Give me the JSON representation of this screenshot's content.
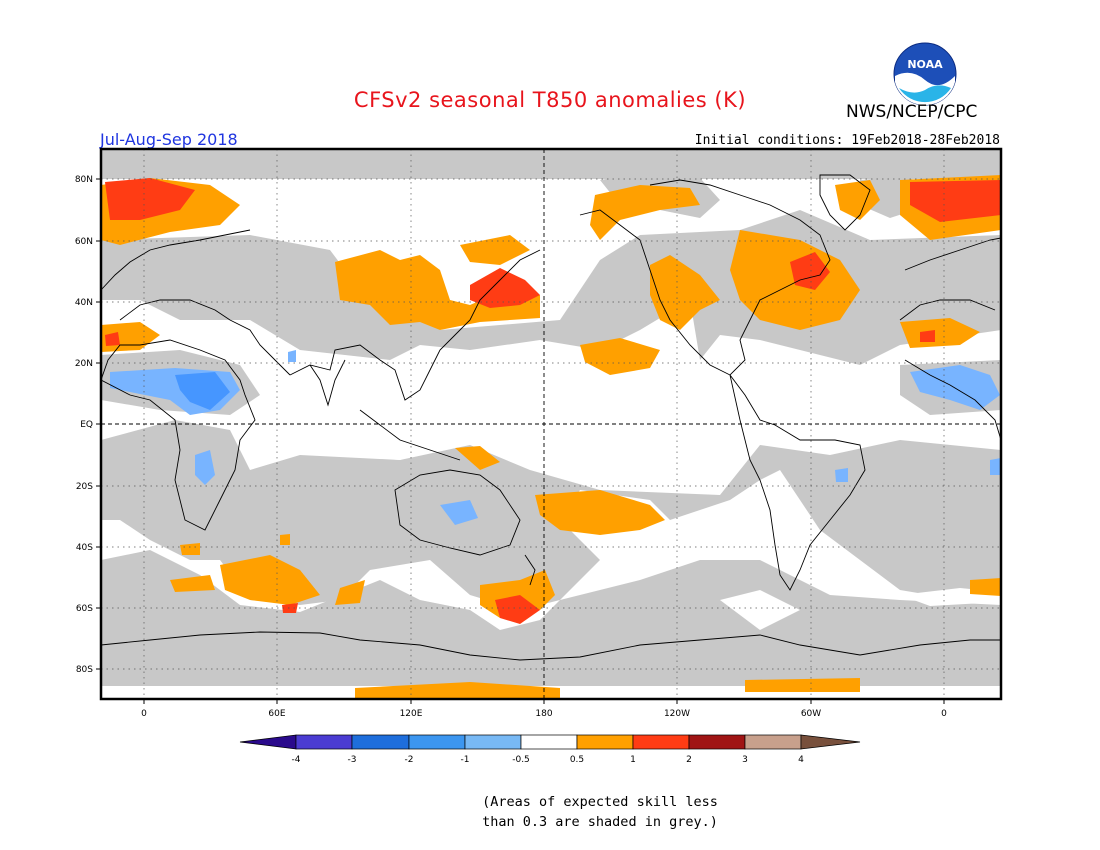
{
  "header": {
    "title": "CFSv2 seasonal T850 anomalies (K)",
    "agency": "NWS/NCEP/CPC",
    "logo_text": "NOAA",
    "season": "Jul-Aug-Sep 2018",
    "initial_conditions": "Initial conditions: 19Feb2018-28Feb2018"
  },
  "map": {
    "lon_labels": [
      "0",
      "60E",
      "120E",
      "180",
      "120W",
      "60W",
      "0"
    ],
    "lat_labels": [
      "80N",
      "60N",
      "40N",
      "20N",
      "EQ",
      "20S",
      "40S",
      "60S",
      "80S"
    ],
    "colors": {
      "skill_grey": "#c8c8c8",
      "warm_1": "#ffa000",
      "warm_2": "#ff3c14",
      "warm_3": "#e61e1e",
      "cool_1": "#78b4ff",
      "cool_2": "#4696ff",
      "coast": "#000000"
    }
  },
  "colorbar": {
    "labels": [
      "-4",
      "-3",
      "-2",
      "-1",
      "-0.5",
      "0.5",
      "1",
      "2",
      "3",
      "4"
    ],
    "colors": [
      "#2a0a8c",
      "#4b3cd2",
      "#1e6edc",
      "#3c96f0",
      "#78b9f5",
      "#ffffff",
      "#ffa000",
      "#ff3c14",
      "#a01414",
      "#c8a08c",
      "#78503c"
    ]
  },
  "note": {
    "line1": "(Areas of expected skill less",
    "line2": "than 0.3 are shaded in grey.)"
  }
}
